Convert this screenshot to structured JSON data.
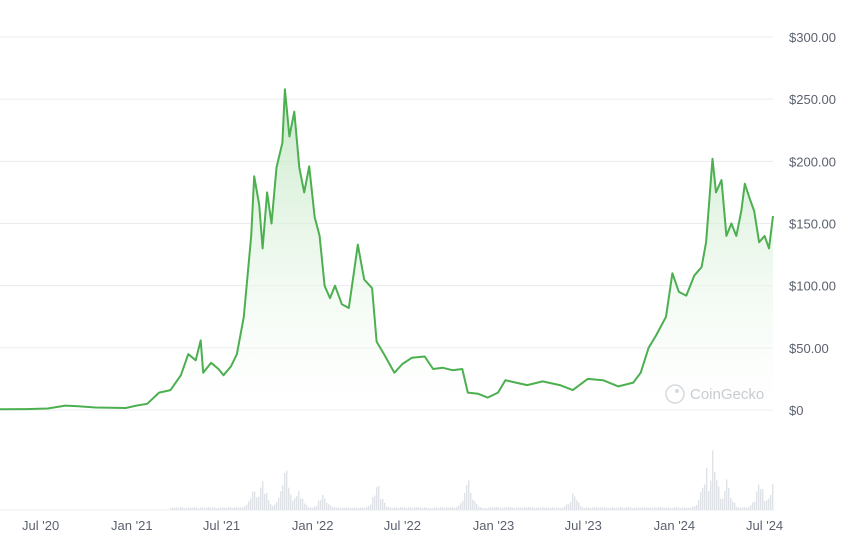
{
  "watermark": {
    "text": "CoinGecko"
  },
  "colors": {
    "line": "#4caf50",
    "area_top": "#cfeccf",
    "grid": "#e9ecef",
    "volume": "#dfe2e6",
    "text": "#5b616e"
  },
  "chart_data": {
    "type": "area",
    "title": "",
    "xlabel": "",
    "ylabel": "",
    "ylim": [
      0,
      300
    ],
    "grid": true,
    "legend": "none",
    "y_ticks": [
      "$300.00",
      "$250.00",
      "$200.00",
      "$150.00",
      "$100.00",
      "$50.00",
      "$0"
    ],
    "y_tick_values": [
      300,
      250,
      200,
      150,
      100,
      50,
      0
    ],
    "x_ticks": [
      "Jul '20",
      "Jan '21",
      "Jul '21",
      "Jan '22",
      "Jul '22",
      "Jan '23",
      "Jul '23",
      "Jan '24",
      "Jul '24"
    ],
    "x_tick_dates": [
      "2020-07-01",
      "2021-01-01",
      "2021-07-01",
      "2022-01-01",
      "2022-07-01",
      "2023-01-01",
      "2023-07-01",
      "2024-01-01",
      "2024-07-01"
    ],
    "x_range": [
      "2020-04-10",
      "2024-07-18"
    ],
    "series": [
      {
        "values": [
          [
            "2020-04-10",
            0.6
          ],
          [
            "2020-06-01",
            0.7
          ],
          [
            "2020-07-15",
            1.2
          ],
          [
            "2020-08-20",
            3.5
          ],
          [
            "2020-09-15",
            3.0
          ],
          [
            "2020-10-20",
            2.0
          ],
          [
            "2020-11-20",
            1.8
          ],
          [
            "2020-12-20",
            1.6
          ],
          [
            "2021-01-10",
            3.5
          ],
          [
            "2021-02-01",
            5.0
          ],
          [
            "2021-02-25",
            14.0
          ],
          [
            "2021-03-20",
            16.0
          ],
          [
            "2021-04-10",
            28.0
          ],
          [
            "2021-04-25",
            45.0
          ],
          [
            "2021-05-10",
            40.0
          ],
          [
            "2021-05-20",
            56.0
          ],
          [
            "2021-05-25",
            30.0
          ],
          [
            "2021-06-10",
            38.0
          ],
          [
            "2021-06-25",
            33.0
          ],
          [
            "2021-07-05",
            28.0
          ],
          [
            "2021-07-20",
            35.0
          ],
          [
            "2021-08-01",
            45.0
          ],
          [
            "2021-08-15",
            75.0
          ],
          [
            "2021-08-30",
            140.0
          ],
          [
            "2021-09-05",
            188.0
          ],
          [
            "2021-09-15",
            165.0
          ],
          [
            "2021-09-22",
            130.0
          ],
          [
            "2021-10-01",
            175.0
          ],
          [
            "2021-10-10",
            150.0
          ],
          [
            "2021-10-20",
            195.0
          ],
          [
            "2021-11-01",
            215.0
          ],
          [
            "2021-11-06",
            258.0
          ],
          [
            "2021-11-15",
            220.0
          ],
          [
            "2021-11-25",
            240.0
          ],
          [
            "2021-12-05",
            195.0
          ],
          [
            "2021-12-15",
            175.0
          ],
          [
            "2021-12-25",
            196.0
          ],
          [
            "2022-01-05",
            155.0
          ],
          [
            "2022-01-15",
            140.0
          ],
          [
            "2022-01-25",
            100.0
          ],
          [
            "2022-02-05",
            90.0
          ],
          [
            "2022-02-15",
            100.0
          ],
          [
            "2022-03-01",
            85.0
          ],
          [
            "2022-03-15",
            82.0
          ],
          [
            "2022-03-25",
            110.0
          ],
          [
            "2022-04-02",
            133.0
          ],
          [
            "2022-04-15",
            105.0
          ],
          [
            "2022-05-01",
            98.0
          ],
          [
            "2022-05-10",
            55.0
          ],
          [
            "2022-05-25",
            45.0
          ],
          [
            "2022-06-15",
            30.0
          ],
          [
            "2022-07-01",
            37.0
          ],
          [
            "2022-07-20",
            42.0
          ],
          [
            "2022-08-15",
            43.0
          ],
          [
            "2022-09-01",
            33.0
          ],
          [
            "2022-09-20",
            34.0
          ],
          [
            "2022-10-10",
            32.0
          ],
          [
            "2022-10-30",
            33.0
          ],
          [
            "2022-11-10",
            14.0
          ],
          [
            "2022-12-01",
            13.0
          ],
          [
            "2022-12-20",
            10.0
          ],
          [
            "2023-01-10",
            14.0
          ],
          [
            "2023-01-25",
            24.0
          ],
          [
            "2023-02-15",
            22.0
          ],
          [
            "2023-03-10",
            20.0
          ],
          [
            "2023-04-10",
            23.0
          ],
          [
            "2023-05-15",
            20.0
          ],
          [
            "2023-06-10",
            16.0
          ],
          [
            "2023-07-10",
            25.0
          ],
          [
            "2023-08-10",
            24.0
          ],
          [
            "2023-09-10",
            19.0
          ],
          [
            "2023-10-10",
            22.0
          ],
          [
            "2023-10-25",
            30.0
          ],
          [
            "2023-11-10",
            50.0
          ],
          [
            "2023-11-25",
            60.0
          ],
          [
            "2023-12-15",
            75.0
          ],
          [
            "2023-12-28",
            110.0
          ],
          [
            "2024-01-10",
            95.0
          ],
          [
            "2024-01-25",
            92.0
          ],
          [
            "2024-02-10",
            108.0
          ],
          [
            "2024-02-25",
            115.0
          ],
          [
            "2024-03-05",
            135.0
          ],
          [
            "2024-03-18",
            202.0
          ],
          [
            "2024-03-25",
            175.0
          ],
          [
            "2024-04-05",
            185.0
          ],
          [
            "2024-04-15",
            140.0
          ],
          [
            "2024-04-25",
            150.0
          ],
          [
            "2024-05-05",
            140.0
          ],
          [
            "2024-05-15",
            160.0
          ],
          [
            "2024-05-22",
            182.0
          ],
          [
            "2024-06-01",
            170.0
          ],
          [
            "2024-06-10",
            160.0
          ],
          [
            "2024-06-20",
            135.0
          ],
          [
            "2024-07-01",
            140.0
          ],
          [
            "2024-07-10",
            130.0
          ],
          [
            "2024-07-18",
            156.0
          ]
        ]
      }
    ],
    "volume": {
      "values": [
        [
          "2021-09-01",
          0.35
        ],
        [
          "2021-09-20",
          0.55
        ],
        [
          "2021-11-06",
          0.8
        ],
        [
          "2021-12-01",
          0.4
        ],
        [
          "2022-01-20",
          0.3
        ],
        [
          "2022-05-10",
          0.45
        ],
        [
          "2022-11-10",
          0.5
        ],
        [
          "2023-06-10",
          0.3
        ],
        [
          "2024-02-25",
          0.35
        ],
        [
          "2024-03-05",
          0.6
        ],
        [
          "2024-03-18",
          1.0
        ],
        [
          "2024-04-15",
          0.45
        ],
        [
          "2024-06-20",
          0.5
        ],
        [
          "2024-07-18",
          0.55
        ]
      ]
    }
  }
}
